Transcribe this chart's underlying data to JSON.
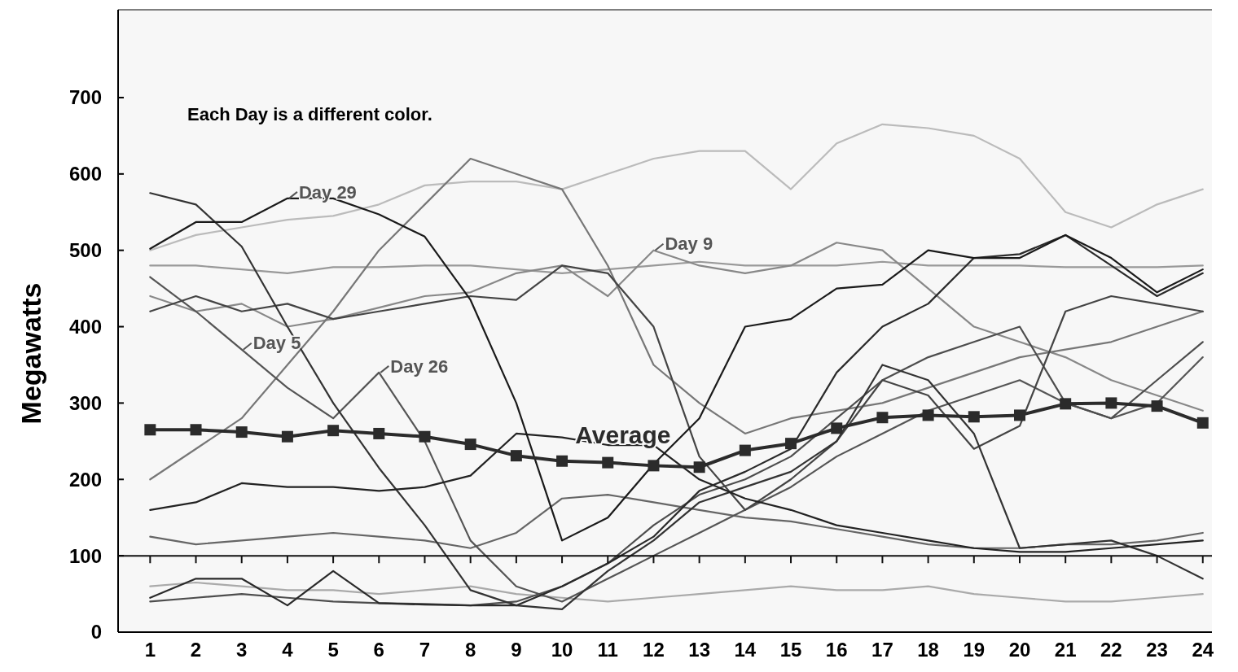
{
  "chart_data": {
    "type": "line",
    "ylabel": "Megawatts",
    "x": [
      1,
      2,
      3,
      4,
      5,
      6,
      7,
      8,
      9,
      10,
      11,
      12,
      13,
      14,
      15,
      16,
      17,
      18,
      19,
      20,
      21,
      22,
      23,
      24
    ],
    "xlim": [
      0.3,
      24.2
    ],
    "xticks": [
      1,
      2,
      3,
      4,
      5,
      6,
      7,
      8,
      9,
      10,
      11,
      12,
      13,
      14,
      15,
      16,
      17,
      18,
      19,
      20,
      21,
      22,
      23,
      24
    ],
    "ylim": [
      0,
      815
    ],
    "yticks": [
      0,
      100,
      200,
      300,
      400,
      500,
      600,
      700
    ],
    "grid": false,
    "legend": false,
    "marker": "none",
    "line_style": "solid",
    "ref_lines": [
      {
        "axis": "y",
        "value": 100,
        "color": "#111111"
      }
    ],
    "annotations": [
      "Each Day is a different color.",
      {
        "text": "Day 29",
        "x": 4,
        "y": 568
      },
      {
        "text": "Day 9",
        "x": 12,
        "y": 500
      },
      {
        "text": "Day 5",
        "x": 3,
        "y": 370
      },
      {
        "text": "Day 26",
        "x": 6,
        "y": 340
      }
    ],
    "series": [
      {
        "color": "#bbbbbb",
        "values": [
          500,
          520,
          530,
          540,
          545,
          560,
          585,
          590,
          590,
          580,
          600,
          620,
          630,
          630,
          580,
          640,
          665,
          660,
          650,
          620,
          550,
          530,
          560,
          580
        ]
      },
      {
        "color": "#999999",
        "values": [
          480,
          480,
          475,
          470,
          478,
          478,
          480,
          480,
          475,
          470,
          475,
          480,
          485,
          480,
          480,
          480,
          485,
          480,
          480,
          480,
          478,
          478,
          478,
          480
        ]
      },
      {
        "color": "#888888",
        "values": [
          440,
          420,
          430,
          400,
          410,
          425,
          440,
          445,
          470,
          480,
          440,
          500,
          480,
          470,
          480,
          510,
          500,
          450,
          400,
          380,
          360,
          330,
          310,
          290
        ]
      },
      {
        "color": "#777777",
        "values": [
          200,
          240,
          280,
          350,
          420,
          500,
          560,
          620,
          600,
          580,
          480,
          350,
          300,
          260,
          280,
          290,
          300,
          320,
          340,
          360,
          370,
          380,
          400,
          420
        ]
      },
      {
        "color": "#aaaaaa",
        "values": [
          60,
          65,
          60,
          55,
          55,
          50,
          55,
          60,
          50,
          45,
          40,
          45,
          50,
          55,
          60,
          55,
          55,
          60,
          50,
          45,
          40,
          40,
          45,
          50
        ]
      },
      {
        "color": "#666666",
        "values": [
          125,
          115,
          120,
          125,
          130,
          125,
          120,
          110,
          130,
          175,
          180,
          170,
          160,
          150,
          145,
          135,
          125,
          115,
          110,
          110,
          115,
          115,
          120,
          130
        ]
      },
      {
        "color": "#555555",
        "values": [
          465,
          420,
          370,
          320,
          280,
          340,
          250,
          120,
          60,
          40,
          70,
          100,
          130,
          160,
          190,
          230,
          260,
          290,
          310,
          330,
          300,
          280,
          300,
          360
        ]
      },
      {
        "color": "#4d4d4d",
        "values": [
          40,
          45,
          50,
          45,
          40,
          38,
          37,
          35,
          40,
          60,
          90,
          140,
          180,
          200,
          230,
          280,
          330,
          360,
          380,
          400,
          300,
          280,
          330,
          380
        ]
      },
      {
        "color": "#444444",
        "values": [
          420,
          440,
          420,
          430,
          410,
          420,
          430,
          440,
          435,
          480,
          470,
          400,
          230,
          160,
          200,
          250,
          330,
          310,
          240,
          270,
          420,
          440,
          430,
          420
        ]
      },
      {
        "color": "#333333",
        "values": [
          575,
          560,
          505,
          400,
          300,
          215,
          140,
          55,
          35,
          30,
          80,
          120,
          170,
          190,
          210,
          250,
          350,
          330,
          260,
          110,
          115,
          120,
          100,
          70
        ]
      },
      {
        "color": "#222222",
        "values": [
          160,
          170,
          195,
          190,
          190,
          185,
          190,
          205,
          260,
          255,
          245,
          245,
          200,
          175,
          160,
          140,
          130,
          120,
          110,
          105,
          105,
          110,
          115,
          120
        ]
      },
      {
        "color": "#2a2a2a",
        "values": [
          45,
          70,
          70,
          35,
          80,
          38,
          36,
          35,
          35,
          60,
          90,
          125,
          185,
          210,
          240,
          340,
          400,
          430,
          490,
          495,
          520,
          480,
          440,
          470
        ]
      },
      {
        "color": "#1a1a1a",
        "values": [
          502,
          537,
          537,
          568,
          568,
          547,
          518,
          435,
          300,
          120,
          150,
          220,
          280,
          400,
          410,
          450,
          455,
          500,
          490,
          490,
          520,
          490,
          445,
          475
        ]
      },
      {
        "name": "Average",
        "color": "#2b2b2b",
        "marker": "square",
        "values": [
          265,
          265,
          262,
          256,
          264,
          260,
          256,
          246,
          231,
          224,
          222,
          218,
          216,
          238,
          247,
          267,
          281,
          284,
          282,
          284,
          299,
          300,
          296,
          274
        ]
      }
    ]
  }
}
